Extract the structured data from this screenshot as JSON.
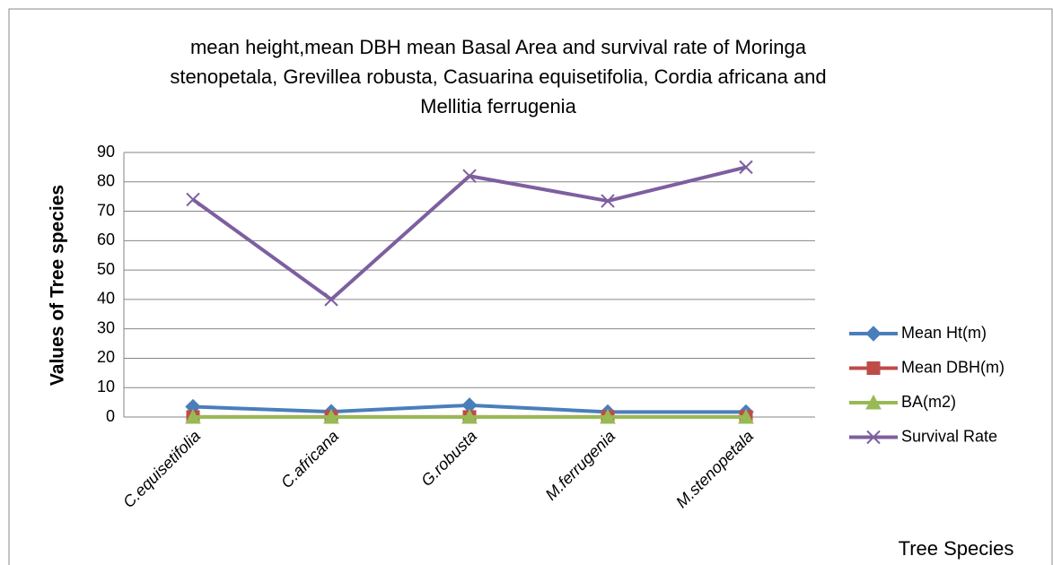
{
  "chart_data": {
    "type": "line",
    "title": "mean height,mean DBH mean Basal Area and survival rate of Moringa stenopetala, Grevillea robusta, Casuarina equisetifolia, Cordia africana and Mellitia ferrugenia",
    "y_label": "Values of Tree species",
    "x_label": "Tree Species",
    "categories": [
      "C.equisetifolia",
      "C.africana",
      "G.robusta",
      "M.ferrugenia",
      "M.stenopetala"
    ],
    "series": [
      {
        "name": "Mean Ht(m)",
        "color": "#4a7ebb",
        "marker": "diamond",
        "values": [
          3.5,
          1.8,
          4.0,
          1.7,
          1.7
        ]
      },
      {
        "name": "Mean DBH(m)",
        "color": "#be4b48",
        "marker": "square",
        "values": [
          0.04,
          0.03,
          0.05,
          0.03,
          0.03
        ]
      },
      {
        "name": "BA(m2)",
        "color": "#98b954",
        "marker": "triangle",
        "values": [
          0.002,
          0.001,
          0.002,
          0.001,
          0.001
        ]
      },
      {
        "name": "Survival Rate",
        "color": "#7d5fa0",
        "marker": "x",
        "values": [
          74,
          40,
          82,
          73.5,
          85
        ]
      }
    ],
    "ylim": [
      0,
      90
    ],
    "yticks": [
      0,
      10,
      20,
      30,
      40,
      50,
      60,
      70,
      80,
      90
    ],
    "grid": true,
    "legend": "right"
  }
}
